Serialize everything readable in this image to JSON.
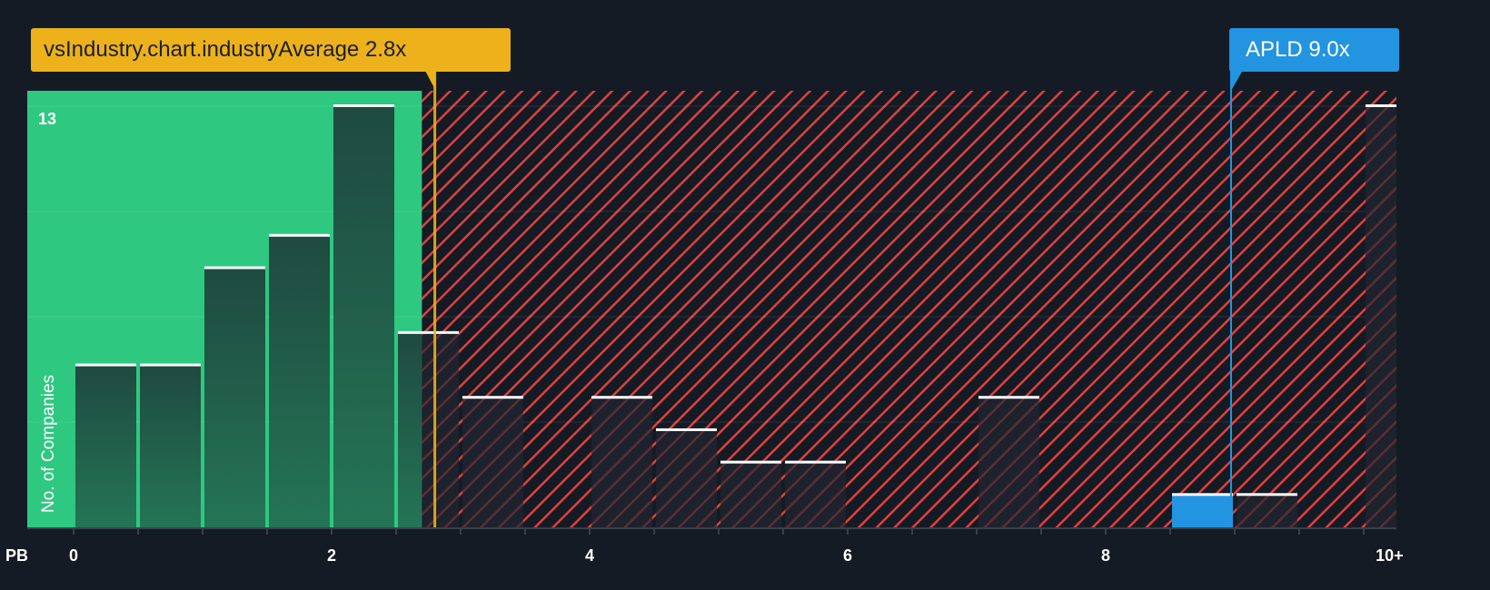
{
  "chart_data": {
    "type": "bar",
    "xlabel": "PB",
    "ylabel": "No. of Companies",
    "x_tick_labels": [
      "0",
      "2",
      "4",
      "6",
      "8",
      "10+"
    ],
    "y_tick_labels": [
      "13"
    ],
    "ylim": [
      0,
      13
    ],
    "grid": true,
    "bins": [
      "0-0.5",
      "0.5-1",
      "1-1.5",
      "1.5-2",
      "2-2.5",
      "2.5-3",
      "3-3.5",
      "3.5-4",
      "4-4.5",
      "4.5-5",
      "5-5.5",
      "5.5-6",
      "6-6.5",
      "6.5-7",
      "7-7.5",
      "7.5-8",
      "8-8.5",
      "8.5-9",
      "9-9.5",
      "9.5-10",
      "10+"
    ],
    "values": [
      5,
      5,
      8,
      9,
      13,
      6,
      4,
      0,
      4,
      3,
      2,
      2,
      0,
      0,
      4,
      0,
      0,
      1,
      1,
      0,
      13
    ],
    "highlighted_bin": "8.5-9",
    "industry_average": {
      "label": "vsIndustry.chart.industryAverage 2.8x",
      "value": 2.8
    },
    "company": {
      "label": "APLD 9.0x",
      "value": 9.0
    },
    "fair_region_max": 2.7,
    "colors": {
      "fair": "#2ec880",
      "expensive_hatch": "#e04040",
      "industry": "#ecb11b",
      "company": "#2394e0",
      "background": "#151b24"
    }
  }
}
